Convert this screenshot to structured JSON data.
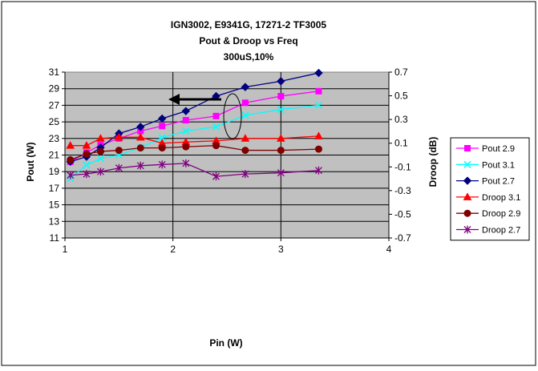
{
  "chart_data": {
    "type": "line",
    "title_lines": [
      "IGN3002, E9341G, 17271-2 TF3005",
      "Pout & Droop vs Freq",
      "300uS,10%"
    ],
    "xlabel": "Pin (W)",
    "ylabel_left": "Pout (W)",
    "ylabel_right": "Droop (dB)",
    "xlim": [
      1,
      4
    ],
    "xticks": [
      "1",
      "2",
      "3",
      "4"
    ],
    "ylim_left": [
      11,
      31
    ],
    "yticks_left": [
      "11",
      "13",
      "15",
      "17",
      "19",
      "21",
      "23",
      "25",
      "27",
      "29",
      "31"
    ],
    "ylim_right": [
      -0.7,
      0.7
    ],
    "yticks_right": [
      "-0.7",
      "-0.5",
      "-0.3",
      "-0.1",
      "0.1",
      "0.3",
      "0.5",
      "0.7"
    ],
    "grid": true,
    "legend_position": "right",
    "plot_background": "#c0c0c0",
    "series": [
      {
        "name": "Pout 2.9",
        "axis": "left",
        "color": "#ff00ff",
        "marker": "square",
        "x": [
          1.05,
          1.2,
          1.33,
          1.5,
          1.7,
          1.9,
          2.12,
          2.4,
          2.67,
          3.0,
          3.35
        ],
        "y": [
          20.2,
          21.3,
          22.2,
          23.0,
          23.9,
          24.5,
          25.2,
          25.7,
          27.3,
          28.1,
          28.7
        ]
      },
      {
        "name": "Pout 3.1",
        "axis": "left",
        "color": "#00ffff",
        "marker": "x",
        "x": [
          1.05,
          1.2,
          1.33,
          1.5,
          1.7,
          1.9,
          2.12,
          2.4,
          2.67,
          3.0,
          3.35
        ],
        "y": [
          18.2,
          19.8,
          20.6,
          21.0,
          21.9,
          23.1,
          23.9,
          24.4,
          25.8,
          26.5,
          27.0
        ]
      },
      {
        "name": "Pout 2.7",
        "axis": "left",
        "color": "#000080",
        "marker": "diamond",
        "x": [
          1.05,
          1.2,
          1.33,
          1.5,
          1.7,
          1.9,
          2.12,
          2.4,
          2.67,
          3.0,
          3.35
        ],
        "y": [
          20.2,
          20.8,
          21.9,
          23.6,
          24.4,
          25.4,
          26.3,
          28.1,
          29.2,
          29.9,
          30.9
        ]
      },
      {
        "name": "Droop 3.1",
        "axis": "right",
        "color": "#ff0000",
        "marker": "triangle",
        "x": [
          1.05,
          1.2,
          1.33,
          1.5,
          1.7,
          1.9,
          2.12,
          2.4,
          2.67,
          3.0,
          3.35
        ],
        "y": [
          0.08,
          0.08,
          0.14,
          0.15,
          0.15,
          0.1,
          0.11,
          0.12,
          0.14,
          0.14,
          0.16
        ]
      },
      {
        "name": "Droop 2.9",
        "axis": "right",
        "color": "#800000",
        "marker": "circle",
        "x": [
          1.05,
          1.2,
          1.33,
          1.5,
          1.7,
          1.9,
          2.12,
          2.4,
          2.67,
          3.0,
          3.35
        ],
        "y": [
          -0.04,
          0.01,
          0.03,
          0.04,
          0.06,
          0.06,
          0.07,
          0.08,
          0.04,
          0.04,
          0.05
        ]
      },
      {
        "name": "Droop 2.7",
        "axis": "right",
        "color": "#800080",
        "marker": "star",
        "x": [
          1.05,
          1.2,
          1.33,
          1.5,
          1.7,
          1.9,
          2.12,
          2.4,
          2.67,
          3.0,
          3.35
        ],
        "y": [
          -0.17,
          -0.16,
          -0.14,
          -0.11,
          -0.09,
          -0.08,
          -0.07,
          -0.18,
          -0.16,
          -0.15,
          -0.13
        ]
      }
    ],
    "annotations": [
      "left-arrow",
      "ellipse"
    ]
  }
}
